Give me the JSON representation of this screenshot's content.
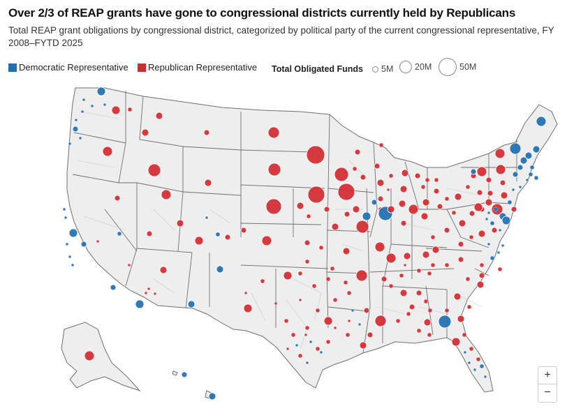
{
  "header": {
    "title": "Over 2/3 of REAP grants have gone to congressional districts currently held by Republicans",
    "subtitle": "Total REAP grant obligations by congressional district, categorized by political party of the current congressional representative, FY 2008–FYTD 2025"
  },
  "legend": {
    "dem_label": "Democratic Representative",
    "rep_label": "Republican Representative",
    "dem_color": "#1f6fb2",
    "rep_color": "#d12a2f",
    "size_title": "Total Obligated Funds",
    "size_labels": [
      "5M",
      "20M",
      "50M"
    ]
  },
  "zoom": {
    "in_label": "+",
    "out_label": "−"
  },
  "map": {
    "land_color": "#eeeeee",
    "border_color": "#6f6f6f",
    "district_color": "#c9c9c9"
  }
}
